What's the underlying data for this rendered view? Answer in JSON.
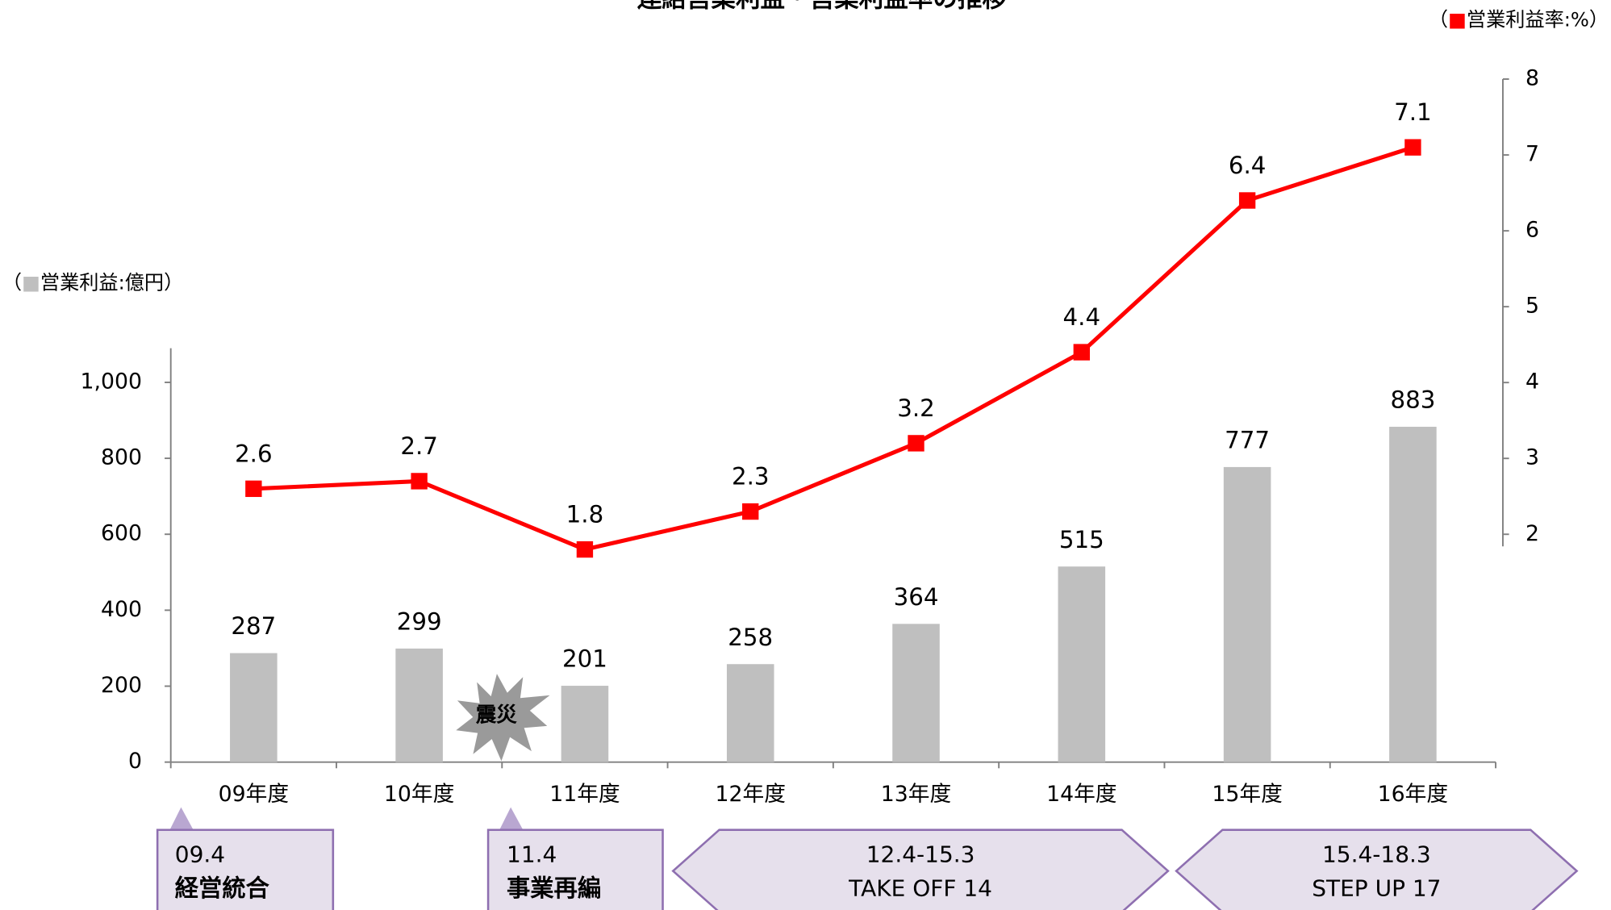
{
  "chart_data": {
    "type": "bar",
    "title": "連結営業利益・営業利益率の推移",
    "y_label": "（■営業利益:億円）",
    "y2_label": "（■営業利益率:%）",
    "categories": [
      "09年度",
      "10年度",
      "11年度",
      "12年度",
      "13年度",
      "14年度",
      "15年度",
      "16年度"
    ],
    "series": [
      {
        "name": "営業利益",
        "type": "bar",
        "color": "#bfbfbf",
        "values": [
          287,
          299,
          201,
          258,
          364,
          515,
          777,
          883
        ]
      },
      {
        "name": "営業利益率",
        "type": "line",
        "axis": "y2",
        "color": "#ff0000",
        "values": [
          2.6,
          2.7,
          1.8,
          2.3,
          3.2,
          4.4,
          6.4,
          7.1
        ]
      }
    ],
    "ylim": [
      0,
      1090
    ],
    "yticks": [
      0,
      200,
      400,
      600,
      800,
      {
        "value": 1000,
        "label": "1,000"
      }
    ],
    "y2lim": [
      1.84,
      8
    ],
    "y2ticks": [
      2,
      3,
      4,
      5,
      6,
      7,
      8
    ],
    "annotations": {
      "event": "震災",
      "periods": [
        {
          "date": "09.4",
          "label": "経営統合"
        },
        {
          "date": "11.4",
          "label": "事業再編"
        },
        {
          "date": "12.4-15.3",
          "label": "TAKE OFF 14"
        },
        {
          "date": "15.4-18.3",
          "label": "STEP UP 17"
        }
      ]
    }
  }
}
